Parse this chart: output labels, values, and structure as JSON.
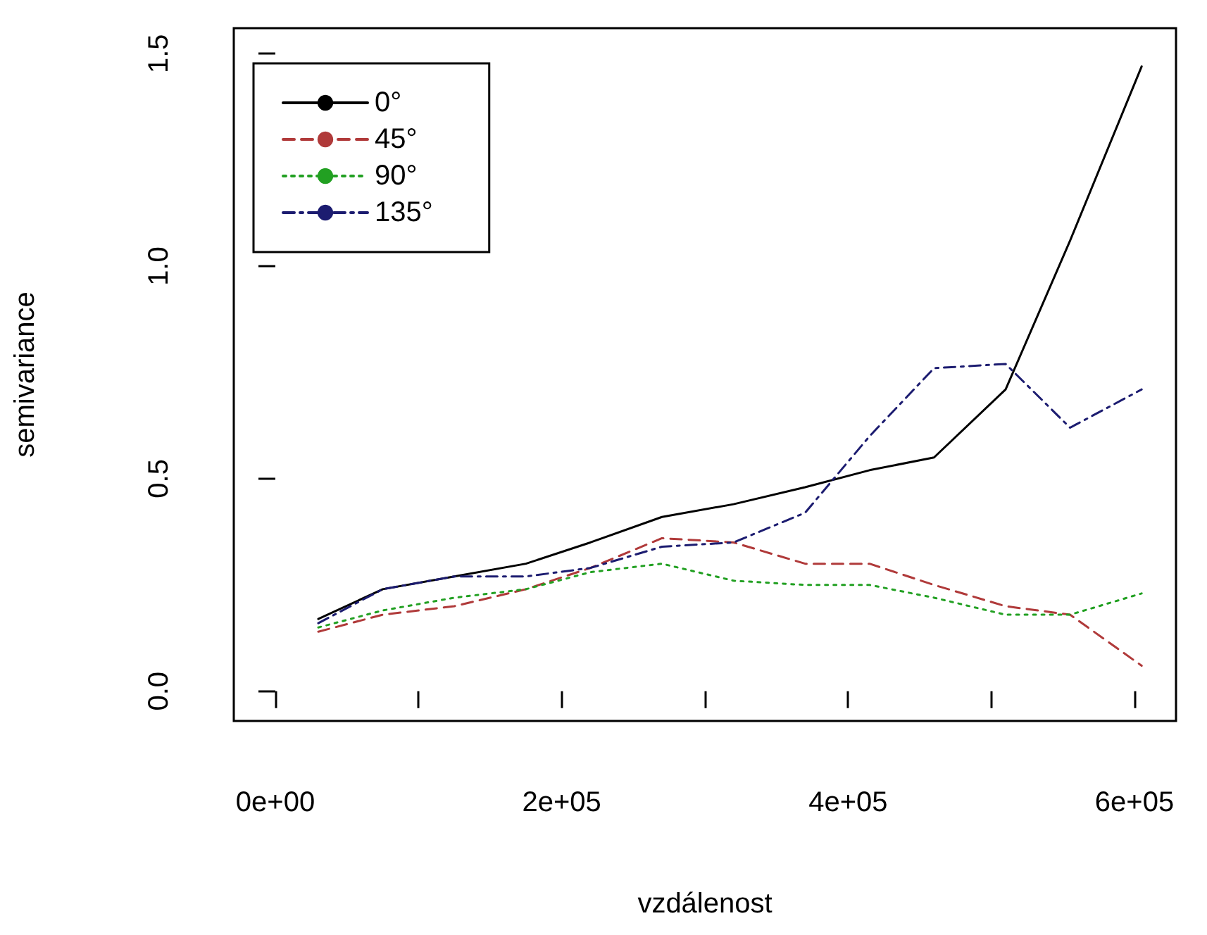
{
  "chart_data": {
    "type": "line",
    "xlabel": "vzdálenost",
    "ylabel": "semivariance",
    "x": [
      30000,
      75000,
      125000,
      175000,
      220000,
      270000,
      320000,
      370000,
      415000,
      460000,
      510000,
      555000,
      605000
    ],
    "series": [
      {
        "name": "0°",
        "color": "#000000",
        "line_style": "solid",
        "values": [
          0.17,
          0.24,
          0.27,
          0.3,
          0.35,
          0.41,
          0.44,
          0.48,
          0.52,
          0.55,
          0.71,
          1.06,
          1.47
        ]
      },
      {
        "name": "45°",
        "color": "#b03a3a",
        "line_style": "dashed",
        "values": [
          0.14,
          0.18,
          0.2,
          0.24,
          0.29,
          0.36,
          0.35,
          0.3,
          0.3,
          0.25,
          0.2,
          0.18,
          0.06
        ]
      },
      {
        "name": "90°",
        "color": "#22a022",
        "line_style": "dotted",
        "values": [
          0.15,
          0.19,
          0.22,
          0.24,
          0.28,
          0.3,
          0.26,
          0.25,
          0.25,
          0.22,
          0.18,
          0.18,
          0.23
        ]
      },
      {
        "name": "135°",
        "color": "#1c1c70",
        "line_style": "dashdot",
        "values": [
          0.16,
          0.24,
          0.27,
          0.27,
          0.29,
          0.34,
          0.35,
          0.42,
          0.6,
          0.76,
          0.77,
          0.62,
          0.71
        ]
      }
    ],
    "xlim": [
      -29000,
      629000
    ],
    "xticks": [
      {
        "value": 0,
        "label": "0e+00"
      },
      {
        "value": 100000,
        "label": null
      },
      {
        "value": 200000,
        "label": "2e+05"
      },
      {
        "value": 300000,
        "label": null
      },
      {
        "value": 400000,
        "label": "4e+05"
      },
      {
        "value": 500000,
        "label": null
      },
      {
        "value": 600000,
        "label": "6e+05"
      }
    ],
    "ylim": [
      -0.07,
      1.56
    ],
    "yticks": [
      {
        "value": 0,
        "label": "0.0"
      },
      {
        "value": 0.5,
        "label": "0.5"
      },
      {
        "value": 1,
        "label": "1.0"
      },
      {
        "value": 1.5,
        "label": "1.5"
      }
    ],
    "grid": false,
    "legend": "top left",
    "marker": "none"
  }
}
